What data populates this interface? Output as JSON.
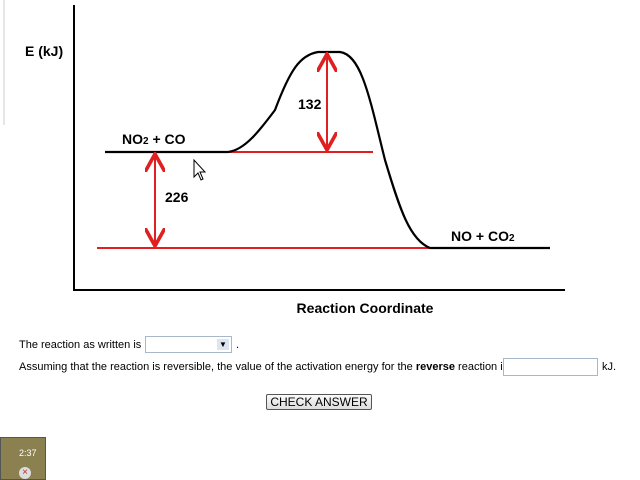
{
  "diagram": {
    "y_axis_label": "E (kJ)",
    "x_axis_label": "Reaction Coordinate",
    "reactants": {
      "parts": [
        "NO",
        "2",
        " + CO"
      ]
    },
    "products": {
      "parts": [
        "NO + CO",
        "2"
      ]
    },
    "activation_label": "132",
    "enthalpy_label": "226"
  },
  "form": {
    "line1": {
      "text": "The reaction as written is",
      "end": "."
    },
    "line2": {
      "before": "Assuming that the reaction is reversible, the value of the activation energy for the ",
      "bold": "reverse",
      "after": " reaction is",
      "unit": "kJ."
    },
    "button": "CHECK ANSWER"
  },
  "timer": "2:37"
}
